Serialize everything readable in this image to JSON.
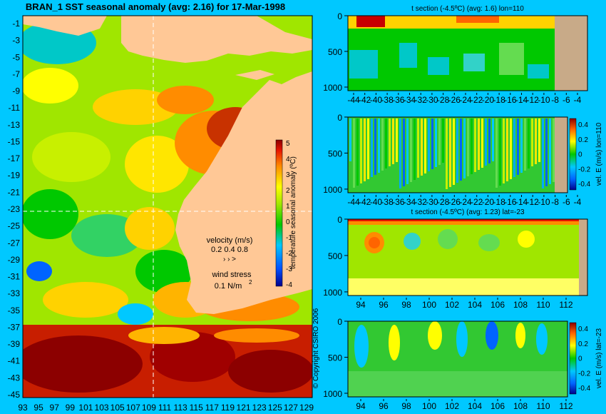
{
  "colors": {
    "background": "#00c8ff",
    "land": "#ffc896",
    "land_right": "#c8aa88"
  },
  "chart_data": [
    {
      "type": "heatmap",
      "title": "BRAN_1  SST seasonal anomaly  (avg: 2.16) for 17-Mar-1998",
      "x_ticks": [
        "93",
        "95",
        "97",
        "99",
        "101",
        "103",
        "105",
        "107",
        "109",
        "111",
        "113",
        "115",
        "117",
        "119",
        "121",
        "123",
        "125",
        "127",
        "129"
      ],
      "y_ticks": [
        "-1",
        "-3",
        "-5",
        "-7",
        "-9",
        "-11",
        "-13",
        "-15",
        "-17",
        "-19",
        "-21",
        "-23",
        "-25",
        "-27",
        "-29",
        "-31",
        "-33",
        "-35",
        "-37",
        "-39",
        "-41",
        "-43",
        "-45"
      ],
      "colorbar": {
        "label": "temperature seasonal anomaly (ºC)",
        "ticks": [
          "5",
          "4",
          "3",
          "2",
          "1",
          "0",
          "-1",
          "-2",
          "-3",
          "-4"
        ],
        "range": [
          -4,
          5
        ]
      },
      "legend": {
        "velocity_label": "velocity (m/s)",
        "velocity_values": "0.2 0.4 0.8",
        "wind_label": "wind stress",
        "wind_value": "0.1 N/m",
        "wind_exp": "2"
      },
      "copyright": "© Copyright CSIRO 2006"
    },
    {
      "type": "heatmap",
      "title": "t section (-4.5ºC)  (avg: 1.6) lon=110",
      "x_ticks": [
        "-44",
        "-42",
        "-40",
        "-38",
        "-36",
        "-34",
        "-32",
        "-30",
        "-28",
        "-26",
        "-24",
        "-22",
        "-20",
        "-18",
        "-16",
        "-14",
        "-12",
        "-10",
        "-8",
        "-6",
        "-4"
      ],
      "y_ticks": [
        "0",
        "500",
        "1000"
      ],
      "ylim": [
        0,
        1050
      ]
    },
    {
      "type": "heatmap",
      "title": "",
      "x_ticks": [
        "-44",
        "-42",
        "-40",
        "-38",
        "-36",
        "-34",
        "-32",
        "-30",
        "-28",
        "-26",
        "-24",
        "-22",
        "-20",
        "-18",
        "-16",
        "-14",
        "-12",
        "-10",
        "-8",
        "-6",
        "-4"
      ],
      "y_ticks": [
        "0",
        "500",
        "1000"
      ],
      "ylim": [
        0,
        1050
      ],
      "colorbar": {
        "label": "vel. E (m/s) lon=110",
        "ticks": [
          "0.4",
          "0.2",
          "0",
          "-0.2",
          "-0.4"
        ],
        "range": [
          -0.5,
          0.5
        ]
      }
    },
    {
      "type": "heatmap",
      "title": "t section (-4.5ºC)  (avg: 1.23) lat=-23",
      "x_ticks": [
        "94",
        "96",
        "98",
        "100",
        "102",
        "104",
        "106",
        "108",
        "110",
        "112"
      ],
      "y_ticks": [
        "0",
        "500",
        "1000"
      ],
      "ylim": [
        0,
        1050
      ]
    },
    {
      "type": "heatmap",
      "title": "",
      "x_ticks": [
        "94",
        "96",
        "98",
        "100",
        "102",
        "104",
        "106",
        "108",
        "110",
        "112"
      ],
      "y_ticks": [
        "0",
        "500",
        "1000"
      ],
      "ylim": [
        0,
        1050
      ],
      "colorbar": {
        "label": "vel. E (m/s) lat=-23",
        "ticks": [
          "0.4",
          "0.2",
          "0",
          "-0.2",
          "-0.4"
        ],
        "range": [
          -0.5,
          0.5
        ]
      }
    }
  ]
}
